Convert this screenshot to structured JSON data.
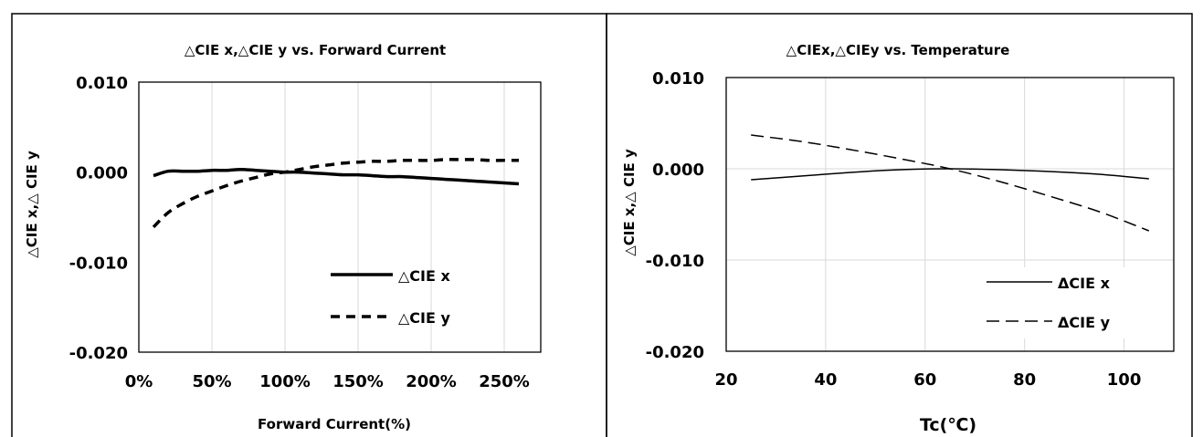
{
  "chart_data": [
    {
      "type": "line",
      "title": "△CIE x,△CIE y   vs. Forward Current",
      "xlabel": "Forward Current(%)",
      "ylabel": "△CIE x,△ CIE y",
      "xlim": [
        0,
        275
      ],
      "ylim": [
        -0.02,
        0.01
      ],
      "xticks": [
        0,
        50,
        100,
        150,
        200,
        250
      ],
      "xtick_labels": [
        "0%",
        "50%",
        "100%",
        "150%",
        "200%",
        "250%"
      ],
      "yticks": [
        0.01,
        0.0,
        -0.01,
        -0.02
      ],
      "ytick_labels": [
        "0.010",
        "0.000",
        "-0.010",
        "-0.020"
      ],
      "grid": "vertical",
      "legend_position": "bottom-right",
      "series": [
        {
          "name": "△CIE x",
          "style": "solid-thick",
          "x": [
            10,
            20,
            30,
            40,
            50,
            60,
            70,
            80,
            90,
            100,
            110,
            120,
            130,
            140,
            150,
            160,
            170,
            180,
            190,
            200,
            210,
            220,
            230,
            240,
            250,
            260
          ],
          "y": [
            -0.0004,
            0.0001,
            0.0001,
            0.0001,
            0.0002,
            0.0002,
            0.0003,
            0.0002,
            0.0001,
            0.0,
            0.0,
            -0.0001,
            -0.0002,
            -0.0003,
            -0.0003,
            -0.0004,
            -0.0005,
            -0.0005,
            -0.0006,
            -0.0007,
            -0.0008,
            -0.0009,
            -0.001,
            -0.0011,
            -0.0012,
            -0.0013
          ]
        },
        {
          "name": "△CIE y",
          "style": "dashed-thick",
          "x": [
            10,
            20,
            30,
            40,
            50,
            60,
            70,
            80,
            90,
            100,
            110,
            120,
            130,
            140,
            150,
            160,
            170,
            180,
            190,
            200,
            210,
            220,
            230,
            240,
            250,
            260
          ],
          "y": [
            -0.0061,
            -0.0045,
            -0.0035,
            -0.0027,
            -0.0021,
            -0.0015,
            -0.001,
            -0.0006,
            -0.0002,
            0.0,
            0.0003,
            0.0006,
            0.0008,
            0.001,
            0.0011,
            0.0012,
            0.0012,
            0.0013,
            0.0013,
            0.0013,
            0.0014,
            0.0014,
            0.0014,
            0.0013,
            0.0013,
            0.0013
          ]
        }
      ]
    },
    {
      "type": "line",
      "title": "△CIEx,△CIEy vs. Temperature",
      "xlabel": "Tc(℃)",
      "ylabel": "△CIE x,△ CIE y",
      "xlim": [
        20,
        110
      ],
      "ylim": [
        -0.02,
        0.01
      ],
      "xticks": [
        20,
        40,
        60,
        80,
        100
      ],
      "xtick_labels": [
        "20",
        "40",
        "60",
        "80",
        "100"
      ],
      "yticks": [
        0.01,
        0.0,
        -0.01,
        -0.02
      ],
      "ytick_labels": [
        "0.010",
        "0.000",
        "-0.010",
        "-0.020"
      ],
      "grid": "both",
      "legend_position": "bottom-right",
      "series": [
        {
          "name": "ΔCIE x",
          "style": "solid-thin",
          "x": [
            25,
            35,
            45,
            55,
            65,
            75,
            85,
            95,
            105
          ],
          "y": [
            -0.0012,
            -0.0008,
            -0.0004,
            -0.0001,
            0.0,
            -0.0001,
            -0.0003,
            -0.0006,
            -0.0011
          ]
        },
        {
          "name": "ΔCIE y",
          "style": "dashed-thin",
          "x": [
            25,
            35,
            45,
            55,
            65,
            75,
            85,
            95,
            105
          ],
          "y": [
            0.0037,
            0.003,
            0.0021,
            0.0011,
            0.0,
            -0.0014,
            -0.003,
            -0.0047,
            -0.0068
          ]
        }
      ]
    }
  ]
}
